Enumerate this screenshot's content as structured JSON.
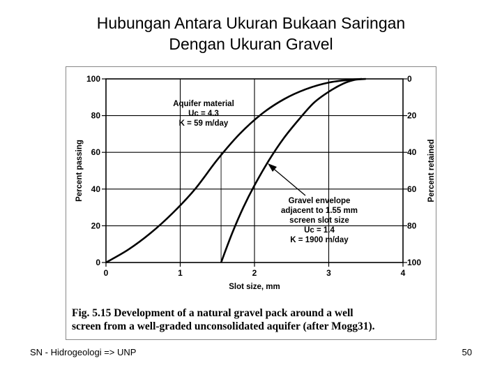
{
  "slide": {
    "title_line1": "Hubungan Antara Ukuran Bukaan Saringan",
    "title_line2": "Dengan Ukuran Gravel",
    "footer_left": "SN - Hidrogeologi => UNP",
    "page_number": "50"
  },
  "chart_data": {
    "type": "line",
    "xlabel": "Slot size, mm",
    "ylabel": "Percent passing",
    "y2label": "Percent retained",
    "xlim": [
      0,
      4
    ],
    "ylim": [
      0,
      100
    ],
    "x_ticks": [
      "0",
      "1",
      "2",
      "3",
      "4"
    ],
    "y_ticks": [
      "0",
      "20",
      "40",
      "60",
      "80",
      "100"
    ],
    "y2_ticks": [
      "100",
      "80",
      "60",
      "40",
      "20",
      "0"
    ],
    "grid": true,
    "series": [
      {
        "name": "Aquifer material",
        "x": [
          0,
          0.3,
          0.6,
          0.9,
          1.2,
          1.5,
          1.8,
          2.1,
          2.4,
          2.7,
          3.0,
          3.3,
          3.45
        ],
        "y": [
          0,
          7,
          16,
          27,
          40,
          56,
          70,
          81,
          89,
          94.5,
          98,
          99.6,
          100
        ]
      },
      {
        "name": "Gravel envelope",
        "x": [
          1.55,
          1.7,
          1.85,
          2.0,
          2.2,
          2.4,
          2.6,
          2.8,
          3.0,
          3.2,
          3.35,
          3.5
        ],
        "y": [
          0,
          16,
          30,
          42,
          56,
          68,
          78,
          87,
          93,
          97.5,
          99.5,
          100
        ]
      }
    ],
    "reference_lines": {
      "x": 1.55,
      "y": 60
    },
    "annotations": {
      "aquifer": [
        "Aquifer material",
        "Uc = 4.3",
        "K = 59 m/day"
      ],
      "gravel": [
        "Gravel envelope",
        "adjacent to 1.55 mm",
        "screen slot size",
        "Uc = 1.4",
        "K = 1900 m/day"
      ]
    },
    "caption_line1": "Fig. 5.15   Development of a natural gravel pack around a well",
    "caption_line2": "screen from a well-graded unconsolidated aquifer (after Mogg31)."
  }
}
